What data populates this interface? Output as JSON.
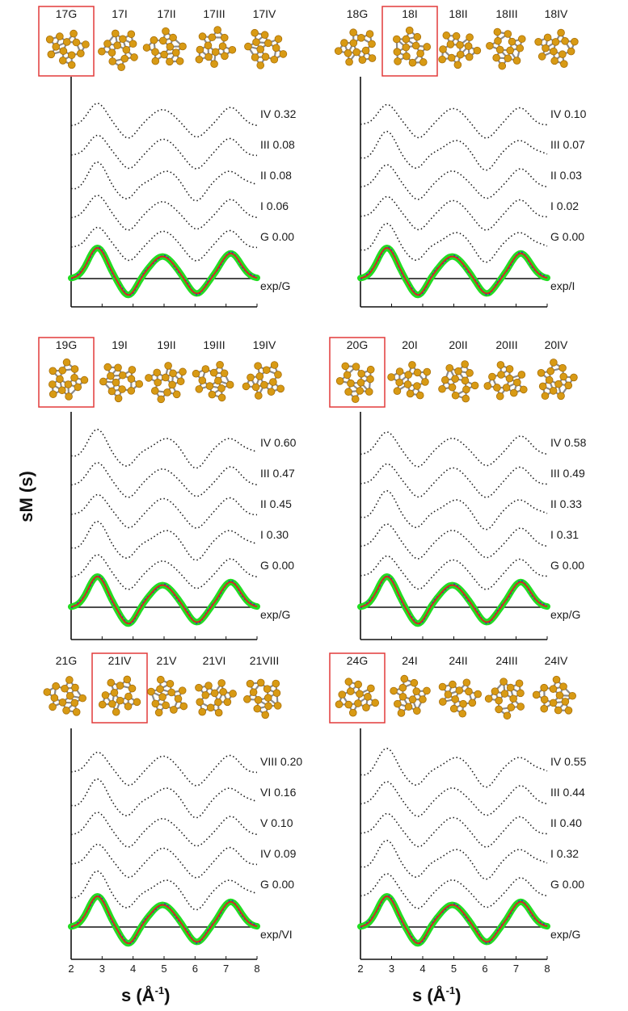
{
  "figure": {
    "ylabel": "sM (s)",
    "xlabel": "s (Å",
    "xlabel_sup": "-1",
    "xlabel_end": ")"
  },
  "colors": {
    "atom": "#d89a14",
    "atom_dark": "#a86e06",
    "bond": "#8a8a8a",
    "highlight_box": "#e23a3a",
    "theory_curve": "#1a1a1a",
    "exp_band": "#22dd22",
    "exp_line": "#dd2222",
    "fit_dotted": "#2233cc"
  },
  "chart_data": [
    {
      "type": "line",
      "panel": "17",
      "structures": [
        "17G",
        "17I",
        "17II",
        "17III",
        "17IV"
      ],
      "highlighted": "17G",
      "series": [
        {
          "name": "IV 0.32"
        },
        {
          "name": "III 0.08"
        },
        {
          "name": "II 0.08"
        },
        {
          "name": "I 0.06"
        },
        {
          "name": "G 0.00"
        }
      ],
      "exp_label": "exp/G",
      "x_ticks": [],
      "xlabel": "",
      "xlim": [
        2,
        8
      ]
    },
    {
      "type": "line",
      "panel": "18",
      "structures": [
        "18G",
        "18I",
        "18II",
        "18III",
        "18IV"
      ],
      "highlighted": "18I",
      "series": [
        {
          "name": "IV 0.10"
        },
        {
          "name": "III 0.07"
        },
        {
          "name": "II 0.03"
        },
        {
          "name": "I 0.02"
        },
        {
          "name": "G 0.00"
        }
      ],
      "exp_label": "exp/I",
      "x_ticks": [],
      "xlabel": "",
      "xlim": [
        2,
        8
      ]
    },
    {
      "type": "line",
      "panel": "19",
      "structures": [
        "19G",
        "19I",
        "19II",
        "19III",
        "19IV"
      ],
      "highlighted": "19G",
      "series": [
        {
          "name": "IV 0.60"
        },
        {
          "name": "III 0.47"
        },
        {
          "name": "II 0.45"
        },
        {
          "name": "I 0.30"
        },
        {
          "name": "G 0.00"
        }
      ],
      "exp_label": "exp/G",
      "x_ticks": [],
      "xlabel": "",
      "xlim": [
        2,
        8
      ]
    },
    {
      "type": "line",
      "panel": "20",
      "structures": [
        "20G",
        "20I",
        "20II",
        "20III",
        "20IV"
      ],
      "highlighted": "20G",
      "series": [
        {
          "name": "IV 0.58"
        },
        {
          "name": "III 0.49"
        },
        {
          "name": "II 0.33"
        },
        {
          "name": "I 0.31"
        },
        {
          "name": "G 0.00"
        }
      ],
      "exp_label": "exp/G",
      "x_ticks": [],
      "xlabel": "",
      "xlim": [
        2,
        8
      ]
    },
    {
      "type": "line",
      "panel": "21",
      "structures": [
        "21G",
        "21IV",
        "21V",
        "21VI",
        "21VIII"
      ],
      "highlighted": "21IV",
      "series": [
        {
          "name": "VIII 0.20"
        },
        {
          "name": "VI 0.16"
        },
        {
          "name": "V 0.10"
        },
        {
          "name": "IV 0.09"
        },
        {
          "name": "G 0.00"
        }
      ],
      "exp_label": "exp/VI",
      "x_ticks": [
        "2",
        "3",
        "4",
        "5",
        "6",
        "7",
        "8"
      ],
      "xlabel": "s (Å-1)",
      "xlim": [
        2,
        8
      ]
    },
    {
      "type": "line",
      "panel": "24",
      "structures": [
        "24G",
        "24I",
        "24II",
        "24III",
        "24IV"
      ],
      "highlighted": "24G",
      "series": [
        {
          "name": "IV 0.55"
        },
        {
          "name": "III 0.44"
        },
        {
          "name": "II 0.40"
        },
        {
          "name": "I 0.32"
        },
        {
          "name": "G 0.00"
        }
      ],
      "exp_label": "exp/G",
      "x_ticks": [
        "2",
        "3",
        "4",
        "5",
        "6",
        "7",
        "8"
      ],
      "xlabel": "s (Å-1)",
      "xlim": [
        2,
        8
      ]
    }
  ]
}
